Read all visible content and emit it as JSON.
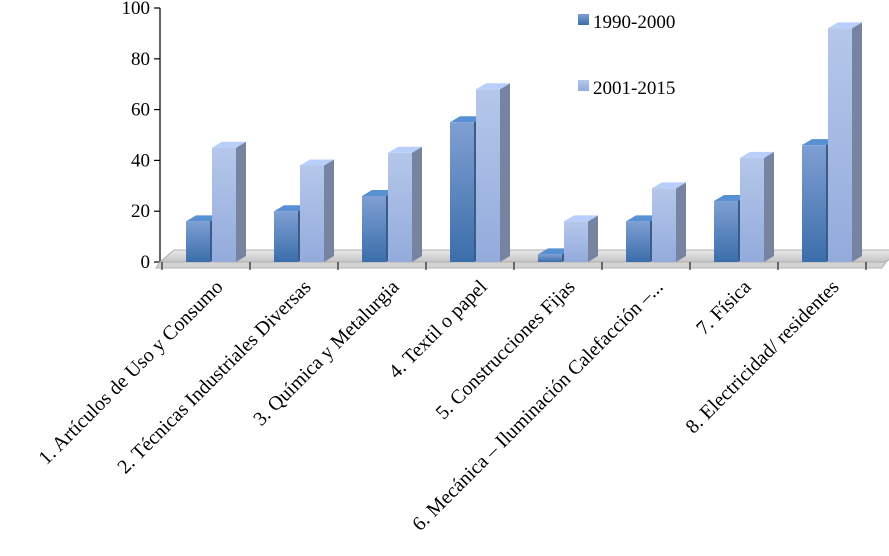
{
  "chart_data": {
    "type": "bar",
    "categories": [
      "1. Artículos de Uso y Consumo",
      "2. Técnicas Industriales Diversas",
      "3. Química y Metalurgia",
      "4. Textil o papel",
      "5. Construcciones Fijas",
      "6. Mecánica – Iluminación Calefacción –...",
      "7. Física",
      "8. Electricidad/ residentes"
    ],
    "series": [
      {
        "name": "1990-2000",
        "values": [
          16,
          20,
          26,
          55,
          3,
          16,
          24,
          46
        ],
        "color": "#4f81bd"
      },
      {
        "name": "2001-2015",
        "values": [
          45,
          38,
          43,
          68,
          16,
          29,
          41,
          92
        ],
        "color": "#a4b8e0"
      }
    ],
    "yticks": [
      "0",
      "20",
      "40",
      "60",
      "80",
      "100"
    ],
    "ylim": [
      0,
      100
    ],
    "legend": "top-right",
    "grid": false,
    "three_d": true
  }
}
